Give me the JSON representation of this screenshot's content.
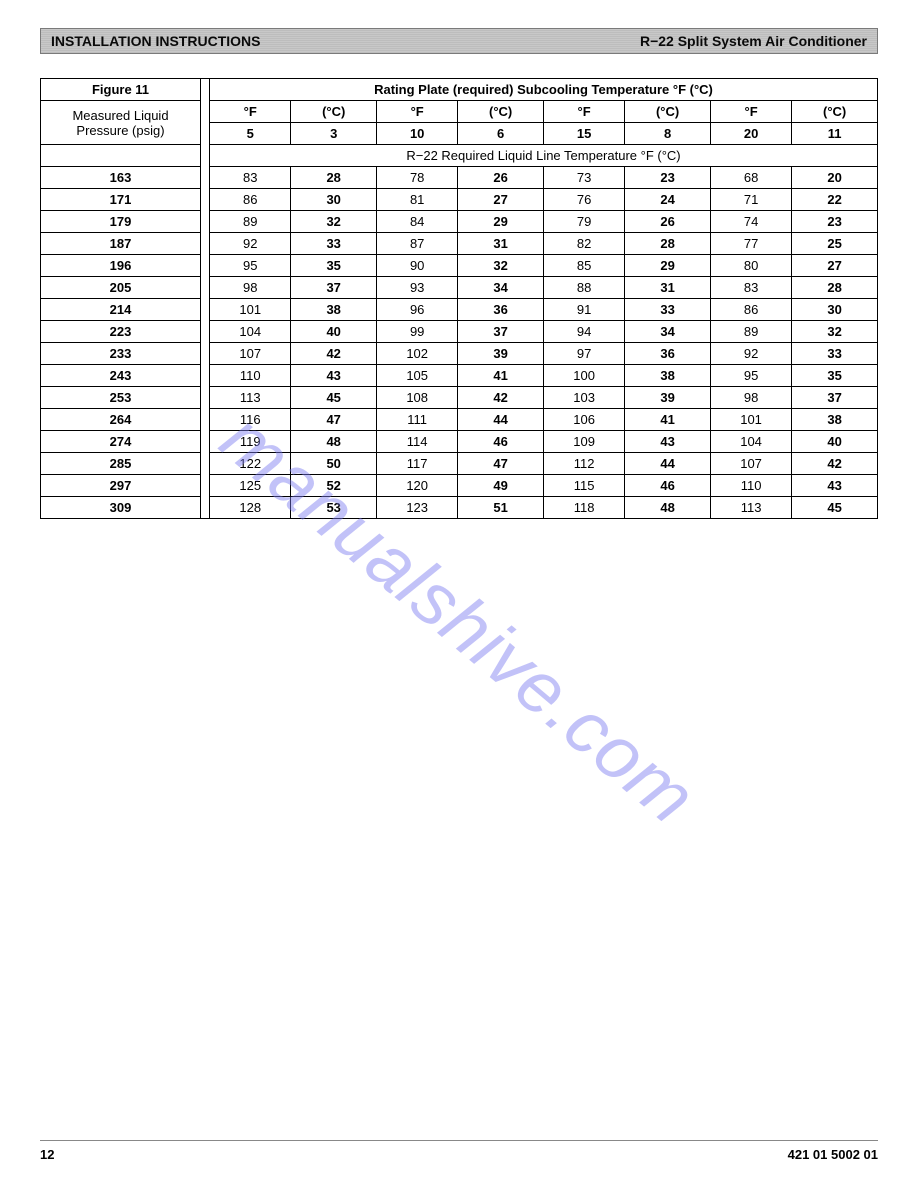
{
  "header": {
    "left": "INSTALLATION INSTRUCTIONS",
    "right": "R−22 Split System Air Conditioner"
  },
  "table": {
    "figure_label": "Figure 11",
    "rating_title": "Rating Plate (required) Subcooling Temperature °F (°C)",
    "rowheader_label_line1": "Measured Liquid",
    "rowheader_label_line2": "Pressure (psig)",
    "unit_f": "°F",
    "unit_c": "(°C)",
    "subcool_f": [
      "5",
      "10",
      "15",
      "20"
    ],
    "subcool_c": [
      "3",
      "6",
      "8",
      "11"
    ],
    "section_title": "R−22 Required Liquid Line Temperature °F (°C)",
    "pressures": [
      "163",
      "171",
      "179",
      "187",
      "196",
      "205",
      "214",
      "223",
      "233",
      "243",
      "253",
      "264",
      "274",
      "285",
      "297",
      "309"
    ],
    "temps_f": [
      [
        "83",
        "78",
        "73",
        "68"
      ],
      [
        "86",
        "81",
        "76",
        "71"
      ],
      [
        "89",
        "84",
        "79",
        "74"
      ],
      [
        "92",
        "87",
        "82",
        "77"
      ],
      [
        "95",
        "90",
        "85",
        "80"
      ],
      [
        "98",
        "93",
        "88",
        "83"
      ],
      [
        "101",
        "96",
        "91",
        "86"
      ],
      [
        "104",
        "99",
        "94",
        "89"
      ],
      [
        "107",
        "102",
        "97",
        "92"
      ],
      [
        "110",
        "105",
        "100",
        "95"
      ],
      [
        "113",
        "108",
        "103",
        "98"
      ],
      [
        "116",
        "111",
        "106",
        "101"
      ],
      [
        "119",
        "114",
        "109",
        "104"
      ],
      [
        "122",
        "117",
        "112",
        "107"
      ],
      [
        "125",
        "120",
        "115",
        "110"
      ],
      [
        "128",
        "123",
        "118",
        "113"
      ]
    ],
    "temps_c": [
      [
        "28",
        "26",
        "23",
        "20"
      ],
      [
        "30",
        "27",
        "24",
        "22"
      ],
      [
        "32",
        "29",
        "26",
        "23"
      ],
      [
        "33",
        "31",
        "28",
        "25"
      ],
      [
        "35",
        "32",
        "29",
        "27"
      ],
      [
        "37",
        "34",
        "31",
        "28"
      ],
      [
        "38",
        "36",
        "33",
        "30"
      ],
      [
        "40",
        "37",
        "34",
        "32"
      ],
      [
        "42",
        "39",
        "36",
        "33"
      ],
      [
        "43",
        "41",
        "38",
        "35"
      ],
      [
        "45",
        "42",
        "39",
        "37"
      ],
      [
        "47",
        "44",
        "41",
        "38"
      ],
      [
        "48",
        "46",
        "43",
        "40"
      ],
      [
        "50",
        "47",
        "44",
        "42"
      ],
      [
        "52",
        "49",
        "46",
        "43"
      ],
      [
        "53",
        "51",
        "48",
        "45"
      ]
    ]
  },
  "watermark": "manualshive.com",
  "footer": {
    "page": "12",
    "docnum": "421 01 5002 01"
  }
}
